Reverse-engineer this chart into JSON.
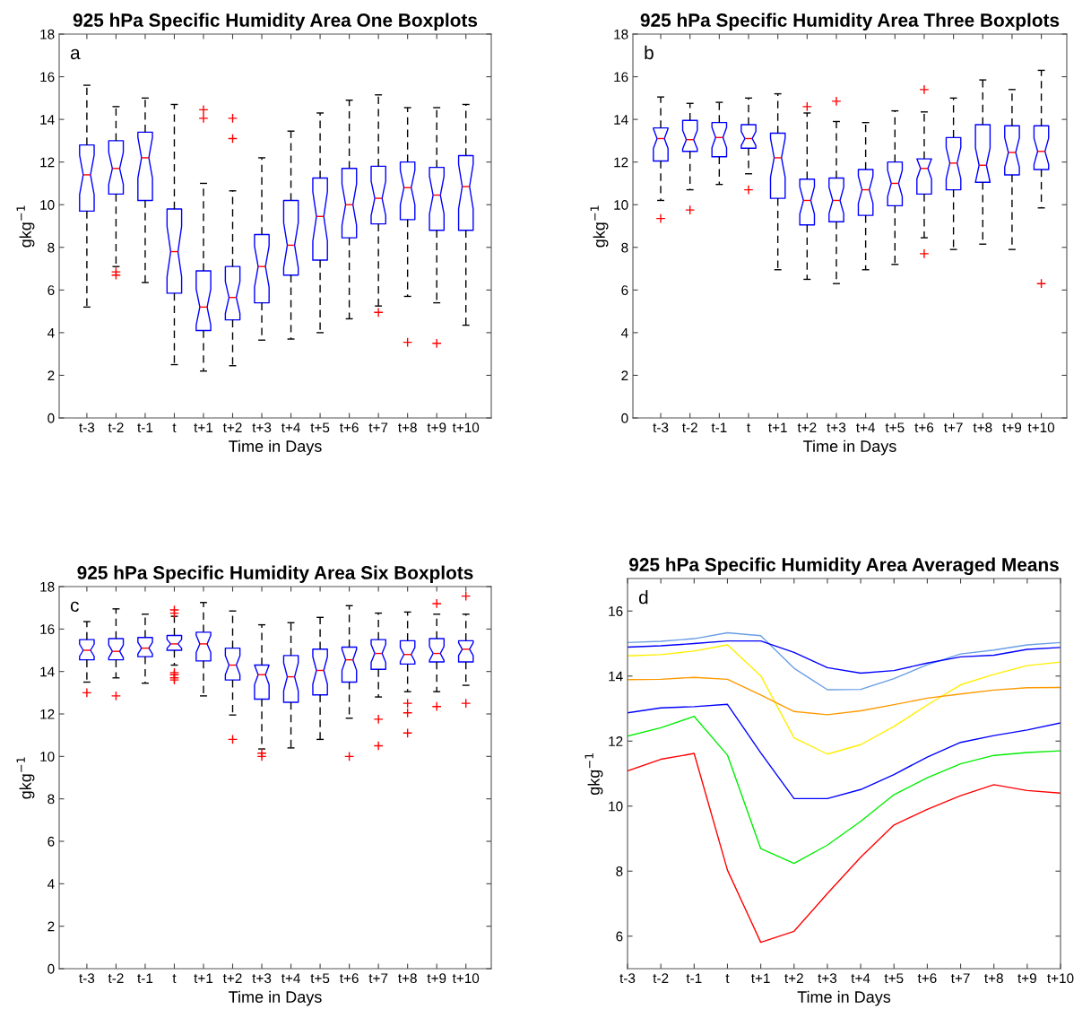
{
  "chart_data": [
    {
      "type": "box",
      "title": "925 hPa Specific Humidity Area One Boxplots",
      "xlabel": "Time in Days",
      "ylabel": "gkg$^{−1}$",
      "annotations": [
        "a"
      ],
      "categories": [
        "t-3",
        "t-2",
        "t-1",
        "t",
        "t+1",
        "t+2",
        "t+3",
        "t+4",
        "t+5",
        "t+6",
        "t+7",
        "t+8",
        "t+9",
        "t+10"
      ],
      "ylim": [
        0,
        18
      ],
      "yticks": [
        0,
        2,
        4,
        6,
        8,
        10,
        12,
        14,
        16,
        18
      ],
      "grid": false,
      "boxes": [
        {
          "low": 5.2,
          "q1": 9.7,
          "median": 11.4,
          "q3": 12.8,
          "high": 15.6
        },
        {
          "low": 7.1,
          "q1": 10.5,
          "median": 11.7,
          "q3": 13.0,
          "high": 14.6,
          "outliers": [
            6.85,
            6.7
          ]
        },
        {
          "low": 6.35,
          "q1": 10.2,
          "median": 12.2,
          "q3": 13.4,
          "high": 15.0
        },
        {
          "low": 2.5,
          "q1": 5.85,
          "median": 7.8,
          "q3": 9.8,
          "high": 14.7
        },
        {
          "low": 2.2,
          "q1": 4.1,
          "median": 5.2,
          "q3": 6.9,
          "high": 11.0,
          "outliers": [
            14.45,
            14.05
          ]
        },
        {
          "low": 2.45,
          "q1": 4.6,
          "median": 5.65,
          "q3": 7.1,
          "high": 10.65,
          "outliers": [
            14.05,
            13.1
          ]
        },
        {
          "low": 3.65,
          "q1": 5.4,
          "median": 7.1,
          "q3": 8.6,
          "high": 12.2
        },
        {
          "low": 3.7,
          "q1": 6.7,
          "median": 8.1,
          "q3": 10.2,
          "high": 13.45
        },
        {
          "low": 4.0,
          "q1": 7.4,
          "median": 9.45,
          "q3": 11.25,
          "high": 14.3
        },
        {
          "low": 4.65,
          "q1": 8.45,
          "median": 10.0,
          "q3": 11.7,
          "high": 14.9
        },
        {
          "low": 5.25,
          "q1": 9.1,
          "median": 10.3,
          "q3": 11.8,
          "high": 15.15,
          "outliers": [
            4.95
          ]
        },
        {
          "low": 5.7,
          "q1": 9.3,
          "median": 10.8,
          "q3": 12.0,
          "high": 14.55,
          "outliers": [
            3.55
          ]
        },
        {
          "low": 5.4,
          "q1": 8.8,
          "median": 10.45,
          "q3": 11.75,
          "high": 14.55,
          "outliers": [
            3.5
          ]
        },
        {
          "low": 4.35,
          "q1": 8.8,
          "median": 10.85,
          "q3": 12.3,
          "high": 14.7
        }
      ]
    },
    {
      "type": "box",
      "title": "925 hPa Specific Humidity Area Three Boxplots",
      "xlabel": "Time in Days",
      "ylabel": "gkg$^{−1}$",
      "annotations": [
        "b"
      ],
      "categories": [
        "t-3",
        "t-2",
        "t-1",
        "t",
        "t+1",
        "t+2",
        "t+3",
        "t+4",
        "t+5",
        "t+6",
        "t+7",
        "t+8",
        "t+9",
        "t+10"
      ],
      "ylim": [
        0,
        18
      ],
      "yticks": [
        0,
        2,
        4,
        6,
        8,
        10,
        12,
        14,
        16,
        18
      ],
      "grid": false,
      "boxes": [
        {
          "low": 10.2,
          "q1": 12.05,
          "median": 13.1,
          "q3": 13.6,
          "high": 15.05,
          "outliers": [
            9.35
          ]
        },
        {
          "low": 10.7,
          "q1": 12.5,
          "median": 13.05,
          "q3": 13.95,
          "high": 14.75,
          "outliers": [
            9.75
          ]
        },
        {
          "low": 10.95,
          "q1": 12.25,
          "median": 13.15,
          "q3": 13.85,
          "high": 14.8
        },
        {
          "low": 11.45,
          "q1": 12.65,
          "median": 13.1,
          "q3": 13.75,
          "high": 15.0,
          "outliers": [
            10.7
          ]
        },
        {
          "low": 6.95,
          "q1": 10.3,
          "median": 12.2,
          "q3": 13.35,
          "high": 15.2
        },
        {
          "low": 6.5,
          "q1": 9.05,
          "median": 10.2,
          "q3": 11.2,
          "high": 14.3,
          "outliers": [
            14.6
          ]
        },
        {
          "low": 6.3,
          "q1": 9.2,
          "median": 10.2,
          "q3": 11.25,
          "high": 13.9,
          "outliers": [
            14.85
          ]
        },
        {
          "low": 6.95,
          "q1": 9.5,
          "median": 10.7,
          "q3": 11.65,
          "high": 13.85
        },
        {
          "low": 7.2,
          "q1": 9.95,
          "median": 11.0,
          "q3": 12.0,
          "high": 14.4
        },
        {
          "low": 8.45,
          "q1": 10.5,
          "median": 11.7,
          "q3": 12.15,
          "high": 14.35,
          "outliers": [
            15.4,
            7.7
          ]
        },
        {
          "low": 7.9,
          "q1": 10.7,
          "median": 11.95,
          "q3": 13.15,
          "high": 15.0
        },
        {
          "low": 8.15,
          "q1": 11.05,
          "median": 11.85,
          "q3": 13.75,
          "high": 15.85
        },
        {
          "low": 7.9,
          "q1": 11.4,
          "median": 12.45,
          "q3": 13.7,
          "high": 15.4
        },
        {
          "low": 9.85,
          "q1": 11.65,
          "median": 12.5,
          "q3": 13.7,
          "high": 16.3,
          "outliers": [
            6.3
          ]
        }
      ]
    },
    {
      "type": "box",
      "title": "925 hPa Specific Humidity Area Six Boxplots",
      "xlabel": "Time in Days",
      "ylabel": "gkg$^{−1}$",
      "annotations": [
        "c"
      ],
      "categories": [
        "t-3",
        "t-2",
        "t-1",
        "t",
        "t+1",
        "t+2",
        "t+3",
        "t+4",
        "t+5",
        "t+6",
        "t+7",
        "t+8",
        "t+9",
        "t+10"
      ],
      "ylim": [
        0,
        18
      ],
      "yticks": [
        0,
        2,
        4,
        6,
        8,
        10,
        12,
        14,
        16,
        18
      ],
      "grid": false,
      "boxes": [
        {
          "low": 13.5,
          "q1": 14.55,
          "median": 15.0,
          "q3": 15.5,
          "high": 16.35,
          "outliers": [
            13.0
          ]
        },
        {
          "low": 13.7,
          "q1": 14.55,
          "median": 14.95,
          "q3": 15.55,
          "high": 16.95,
          "outliers": [
            12.85
          ]
        },
        {
          "low": 13.45,
          "q1": 14.7,
          "median": 15.1,
          "q3": 15.6,
          "high": 16.7
        },
        {
          "low": 14.3,
          "q1": 15.0,
          "median": 15.3,
          "q3": 15.7,
          "high": 16.6,
          "outliers": [
            16.9,
            16.75,
            13.95,
            13.85,
            13.7,
            13.6
          ]
        },
        {
          "low": 12.85,
          "q1": 14.5,
          "median": 15.3,
          "q3": 15.85,
          "high": 17.25
        },
        {
          "low": 11.95,
          "q1": 13.6,
          "median": 14.3,
          "q3": 15.1,
          "high": 16.85,
          "outliers": [
            10.8
          ]
        },
        {
          "low": 10.35,
          "q1": 12.7,
          "median": 13.85,
          "q3": 14.3,
          "high": 16.2,
          "outliers": [
            10.15,
            10.0
          ]
        },
        {
          "low": 10.4,
          "q1": 12.55,
          "median": 13.75,
          "q3": 14.75,
          "high": 16.3
        },
        {
          "low": 10.8,
          "q1": 12.9,
          "median": 14.05,
          "q3": 15.05,
          "high": 16.55
        },
        {
          "low": 11.8,
          "q1": 13.5,
          "median": 14.55,
          "q3": 15.15,
          "high": 17.1,
          "outliers": [
            10.0
          ]
        },
        {
          "low": 12.8,
          "q1": 14.1,
          "median": 14.85,
          "q3": 15.5,
          "high": 16.75,
          "outliers": [
            11.75,
            10.5
          ]
        },
        {
          "low": 13.05,
          "q1": 14.35,
          "median": 14.8,
          "q3": 15.45,
          "high": 16.8,
          "outliers": [
            12.5,
            12.05,
            11.1
          ]
        },
        {
          "low": 13.05,
          "q1": 14.45,
          "median": 14.85,
          "q3": 15.55,
          "high": 16.7,
          "outliers": [
            17.2,
            12.35
          ]
        },
        {
          "low": 13.35,
          "q1": 14.45,
          "median": 15.05,
          "q3": 15.45,
          "high": 16.7,
          "outliers": [
            17.55,
            12.5
          ]
        }
      ]
    },
    {
      "type": "line",
      "title": "925 hPa Specific Humidity Area Averaged Means",
      "xlabel": "Time in Days",
      "ylabel": "gkg$^{−1}$",
      "annotations": [
        "d"
      ],
      "categories": [
        "t-3",
        "t-2",
        "t-1",
        "t",
        "t+1",
        "t+2",
        "t+3",
        "t+4",
        "t+5",
        "t+6",
        "t+7",
        "t+8",
        "t+9",
        "t+10"
      ],
      "ylim": [
        5,
        17
      ],
      "yticks": [
        6,
        8,
        10,
        12,
        14,
        16
      ],
      "grid": false,
      "marker": "none",
      "line_style": "solid",
      "series": [
        {
          "color": "#6a9ee6",
          "values": [
            15.03,
            15.07,
            15.15,
            15.33,
            15.24,
            14.24,
            13.58,
            13.59,
            13.92,
            14.35,
            14.68,
            14.8,
            14.96,
            15.03
          ]
        },
        {
          "color": "#0000ff",
          "values": [
            14.89,
            14.93,
            15.0,
            15.08,
            15.08,
            14.73,
            14.26,
            14.09,
            14.17,
            14.4,
            14.59,
            14.64,
            14.82,
            14.88
          ]
        },
        {
          "color": "#ffee00",
          "values": [
            14.62,
            14.66,
            14.77,
            14.96,
            14.01,
            12.1,
            11.6,
            11.89,
            12.45,
            13.11,
            13.73,
            14.05,
            14.32,
            14.43
          ]
        },
        {
          "color": "#ff9900",
          "values": [
            13.89,
            13.9,
            13.96,
            13.9,
            13.42,
            12.91,
            12.81,
            12.93,
            13.12,
            13.32,
            13.45,
            13.57,
            13.64,
            13.65
          ]
        },
        {
          "color": "#0000ff",
          "values": [
            12.87,
            13.02,
            13.06,
            13.13,
            11.64,
            10.23,
            10.23,
            10.51,
            10.97,
            11.51,
            11.96,
            12.17,
            12.34,
            12.56
          ]
        },
        {
          "color": "#00ee00",
          "values": [
            12.15,
            12.41,
            12.76,
            11.57,
            8.69,
            8.24,
            8.8,
            9.53,
            10.35,
            10.87,
            11.3,
            11.56,
            11.65,
            11.7
          ]
        },
        {
          "color": "#ff0000",
          "values": [
            11.08,
            11.44,
            11.62,
            8.03,
            5.81,
            6.15,
            7.31,
            8.43,
            9.42,
            9.9,
            10.32,
            10.66,
            10.48,
            10.4
          ]
        }
      ]
    }
  ]
}
